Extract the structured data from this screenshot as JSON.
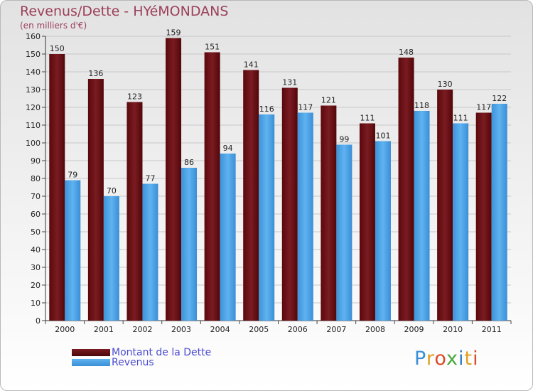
{
  "chart_data": {
    "type": "bar",
    "title": "Revenus/Dette - HYéMONDANS",
    "subtitle": "(en milliers d'€)",
    "categories": [
      "2000",
      "2001",
      "2002",
      "2003",
      "2004",
      "2005",
      "2006",
      "2007",
      "2008",
      "2009",
      "2010",
      "2011"
    ],
    "series": [
      {
        "name": "Montant de la Dette",
        "color": "#6b0f14",
        "values": [
          150,
          136,
          123,
          159,
          151,
          141,
          131,
          121,
          111,
          148,
          130,
          117
        ]
      },
      {
        "name": "Revenus",
        "color": "#4aa3e8",
        "values": [
          79,
          70,
          77,
          86,
          94,
          116,
          117,
          99,
          101,
          118,
          111,
          122
        ]
      }
    ],
    "ylim": [
      0,
      160
    ],
    "yticks": [
      0,
      10,
      20,
      30,
      40,
      50,
      60,
      70,
      80,
      90,
      100,
      110,
      120,
      130,
      140,
      150,
      160
    ],
    "grid": true,
    "legend": "bottom-left"
  },
  "logo": {
    "text": "Proxiti",
    "letter_colors": [
      "#3b8fd6",
      "#e0a020",
      "#d94a2a",
      "#4aa83a",
      "#2f7fc8",
      "#e0a020",
      "#d94a2a"
    ]
  }
}
